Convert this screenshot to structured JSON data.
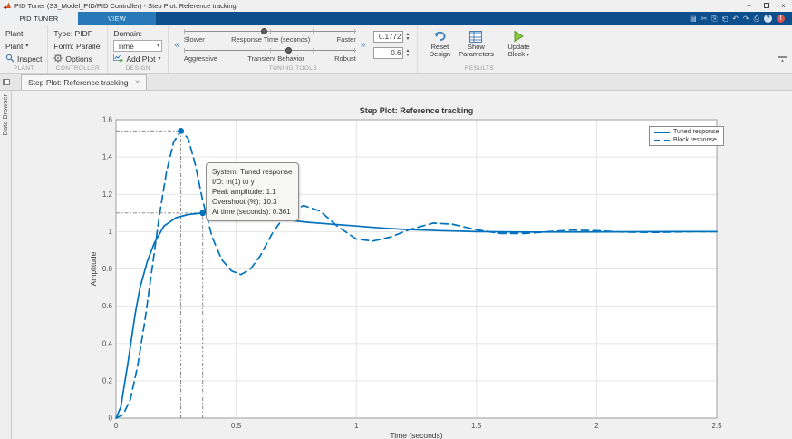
{
  "window": {
    "title": "PID Tuner (S3_Model_PID/PID Controller) - Step Plot: Reference tracking"
  },
  "ribbon": {
    "tabs": [
      {
        "label": "PID TUNER"
      },
      {
        "label": "VIEW"
      }
    ],
    "quick_access": [
      {
        "name": "save-icon",
        "glyph": "▤"
      },
      {
        "name": "cut-icon",
        "glyph": "✂"
      },
      {
        "name": "copy-icon",
        "glyph": "⎘"
      },
      {
        "name": "paste-icon",
        "glyph": "⎗"
      },
      {
        "name": "undo-icon",
        "glyph": "↶"
      },
      {
        "name": "redo-icon",
        "glyph": "↷"
      },
      {
        "name": "print-icon",
        "glyph": "⎙"
      },
      {
        "name": "help-icon",
        "glyph": "?"
      },
      {
        "name": "alert-icon",
        "glyph": "!"
      }
    ]
  },
  "toolbar": {
    "plant": {
      "caption": "PLANT",
      "label": "Plant:",
      "dropdown": "Plant",
      "inspect": "Inspect"
    },
    "controller": {
      "caption": "CONTROLLER",
      "type": "Type: PIDF",
      "form": "Form: Parallel",
      "options": "Options"
    },
    "design": {
      "caption": "DESIGN",
      "domain_label": "Domain:",
      "domain_value": "Time",
      "add_plot": "Add Plot"
    },
    "tuning": {
      "caption": "TUNING TOOLS",
      "slider1": {
        "left": "Slower",
        "center": "Response Time (seconds)",
        "right": "Faster",
        "value": "0.1772"
      },
      "slider2": {
        "left": "Aggressive",
        "center": "Transient Behavior",
        "right": "Robust",
        "value": "0.6"
      }
    },
    "results": {
      "caption": "RESULTS",
      "reset": "Reset Design",
      "show": "Show Parameters",
      "update": "Update Block"
    }
  },
  "doc_tab": {
    "label": "Step Plot: Reference tracking",
    "close": "✕"
  },
  "data_browser": {
    "label": "Data Browser"
  },
  "chart_data": {
    "type": "line",
    "title": "Step Plot: Reference tracking",
    "xlabel": "Time (seconds)",
    "ylabel": "Amplitude",
    "xlim": [
      0,
      2.5
    ],
    "ylim": [
      0,
      1.6
    ],
    "grid": true,
    "xticks": [
      0,
      0.5,
      1,
      1.5,
      2,
      2.5
    ],
    "xtick_labels": [
      "0",
      "0.5",
      "1",
      "1.5",
      "2",
      "2.5"
    ],
    "yticks": [
      0,
      0.2,
      0.4,
      0.6,
      0.8,
      1,
      1.2,
      1.4,
      1.6
    ],
    "ytick_labels": [
      "0",
      "0.2",
      "0.4",
      "0.6",
      "0.8",
      "1",
      "1.2",
      "1.4",
      "1.6"
    ],
    "colors": {
      "line": "#0072BD",
      "grid": "#e5e5e5",
      "axes": "#9e9e9e",
      "cursor": "#7d7d7d"
    },
    "legend": {
      "position": "top-right",
      "entries": [
        {
          "name": "Tuned response",
          "style": "solid"
        },
        {
          "name": "Block response",
          "style": "dashed"
        }
      ]
    },
    "series": [
      {
        "name": "Tuned response",
        "style": "solid",
        "x": [
          0,
          0.02,
          0.05,
          0.08,
          0.1,
          0.13,
          0.16,
          0.2,
          0.25,
          0.3,
          0.361,
          0.42,
          0.5,
          0.6,
          0.7,
          0.8,
          0.9,
          1.0,
          1.1,
          1.2,
          1.35,
          1.5,
          1.7,
          1.9,
          2.1,
          2.3,
          2.5
        ],
        "y": [
          0,
          0.06,
          0.3,
          0.56,
          0.7,
          0.84,
          0.94,
          1.03,
          1.075,
          1.092,
          1.1,
          1.098,
          1.09,
          1.078,
          1.064,
          1.05,
          1.04,
          1.03,
          1.02,
          1.012,
          1.005,
          1.0,
          0.998,
          0.998,
          0.999,
          1.0,
          1.0
        ]
      },
      {
        "name": "Block response",
        "style": "dashed",
        "x": [
          0,
          0.03,
          0.06,
          0.09,
          0.12,
          0.15,
          0.18,
          0.21,
          0.24,
          0.27,
          0.3,
          0.33,
          0.36,
          0.4,
          0.44,
          0.48,
          0.52,
          0.56,
          0.6,
          0.65,
          0.7,
          0.78,
          0.85,
          0.92,
          1.0,
          1.07,
          1.14,
          1.22,
          1.32,
          1.4,
          1.5,
          1.6,
          1.7,
          1.8,
          1.9,
          2.0,
          2.1,
          2.25,
          2.4,
          2.5
        ],
        "y": [
          0,
          0.02,
          0.1,
          0.28,
          0.52,
          0.8,
          1.08,
          1.32,
          1.48,
          1.54,
          1.5,
          1.36,
          1.17,
          0.97,
          0.85,
          0.79,
          0.77,
          0.8,
          0.87,
          0.99,
          1.08,
          1.14,
          1.11,
          1.03,
          0.96,
          0.95,
          0.97,
          1.01,
          1.046,
          1.04,
          1.01,
          0.99,
          0.99,
          1.0,
          1.008,
          1.005,
          0.998,
          0.996,
          1.0,
          1.0
        ]
      }
    ],
    "markers": [
      {
        "series": "Block response",
        "x": 0.27,
        "y": 1.54
      },
      {
        "series": "Tuned response",
        "x": 0.361,
        "y": 1.1
      }
    ],
    "datatip": {
      "lines": [
        "System: Tuned response",
        "I/O: In(1) to y",
        "Peak amplitude: 1.1",
        "Overshoot (%): 10.3",
        "At time (seconds): 0.361"
      ]
    }
  }
}
